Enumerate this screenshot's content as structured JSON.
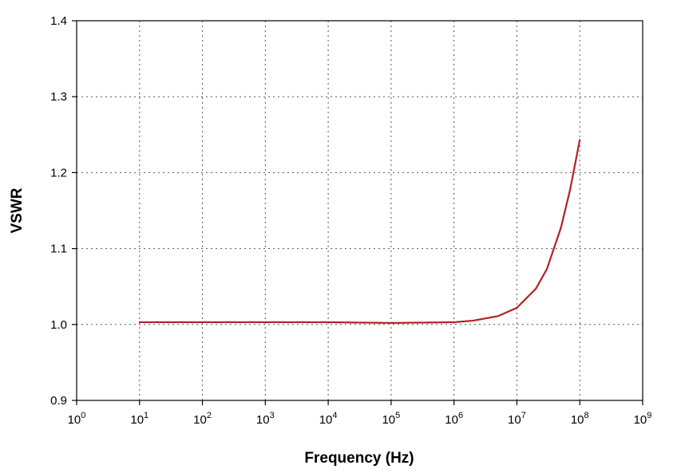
{
  "chart_data": {
    "type": "line",
    "title": "",
    "xlabel": "Frequency (Hz)",
    "ylabel": "VSWR",
    "xscale": "log",
    "xlim": [
      1,
      1000000000
    ],
    "ylim": [
      0.9,
      1.4
    ],
    "grid": true,
    "legend": "none",
    "x_ticks": [
      {
        "base": "10",
        "exp": "0"
      },
      {
        "base": "10",
        "exp": "1"
      },
      {
        "base": "10",
        "exp": "2"
      },
      {
        "base": "10",
        "exp": "3"
      },
      {
        "base": "10",
        "exp": "4"
      },
      {
        "base": "10",
        "exp": "5"
      },
      {
        "base": "10",
        "exp": "6"
      },
      {
        "base": "10",
        "exp": "7"
      },
      {
        "base": "10",
        "exp": "8"
      },
      {
        "base": "10",
        "exp": "9"
      }
    ],
    "y_ticks": [
      "0.9",
      "1.0",
      "1.1",
      "1.2",
      "1.3",
      "1.4"
    ],
    "series": [
      {
        "color": "#b22222",
        "x": [
          10,
          100,
          1000,
          10000,
          100000,
          1000000,
          2000000,
          5000000,
          10000000,
          20000000,
          30000000,
          50000000,
          70000000,
          100000000
        ],
        "y": [
          1.003,
          1.003,
          1.003,
          1.003,
          1.002,
          1.003,
          1.005,
          1.011,
          1.022,
          1.047,
          1.073,
          1.127,
          1.177,
          1.243
        ]
      }
    ]
  }
}
